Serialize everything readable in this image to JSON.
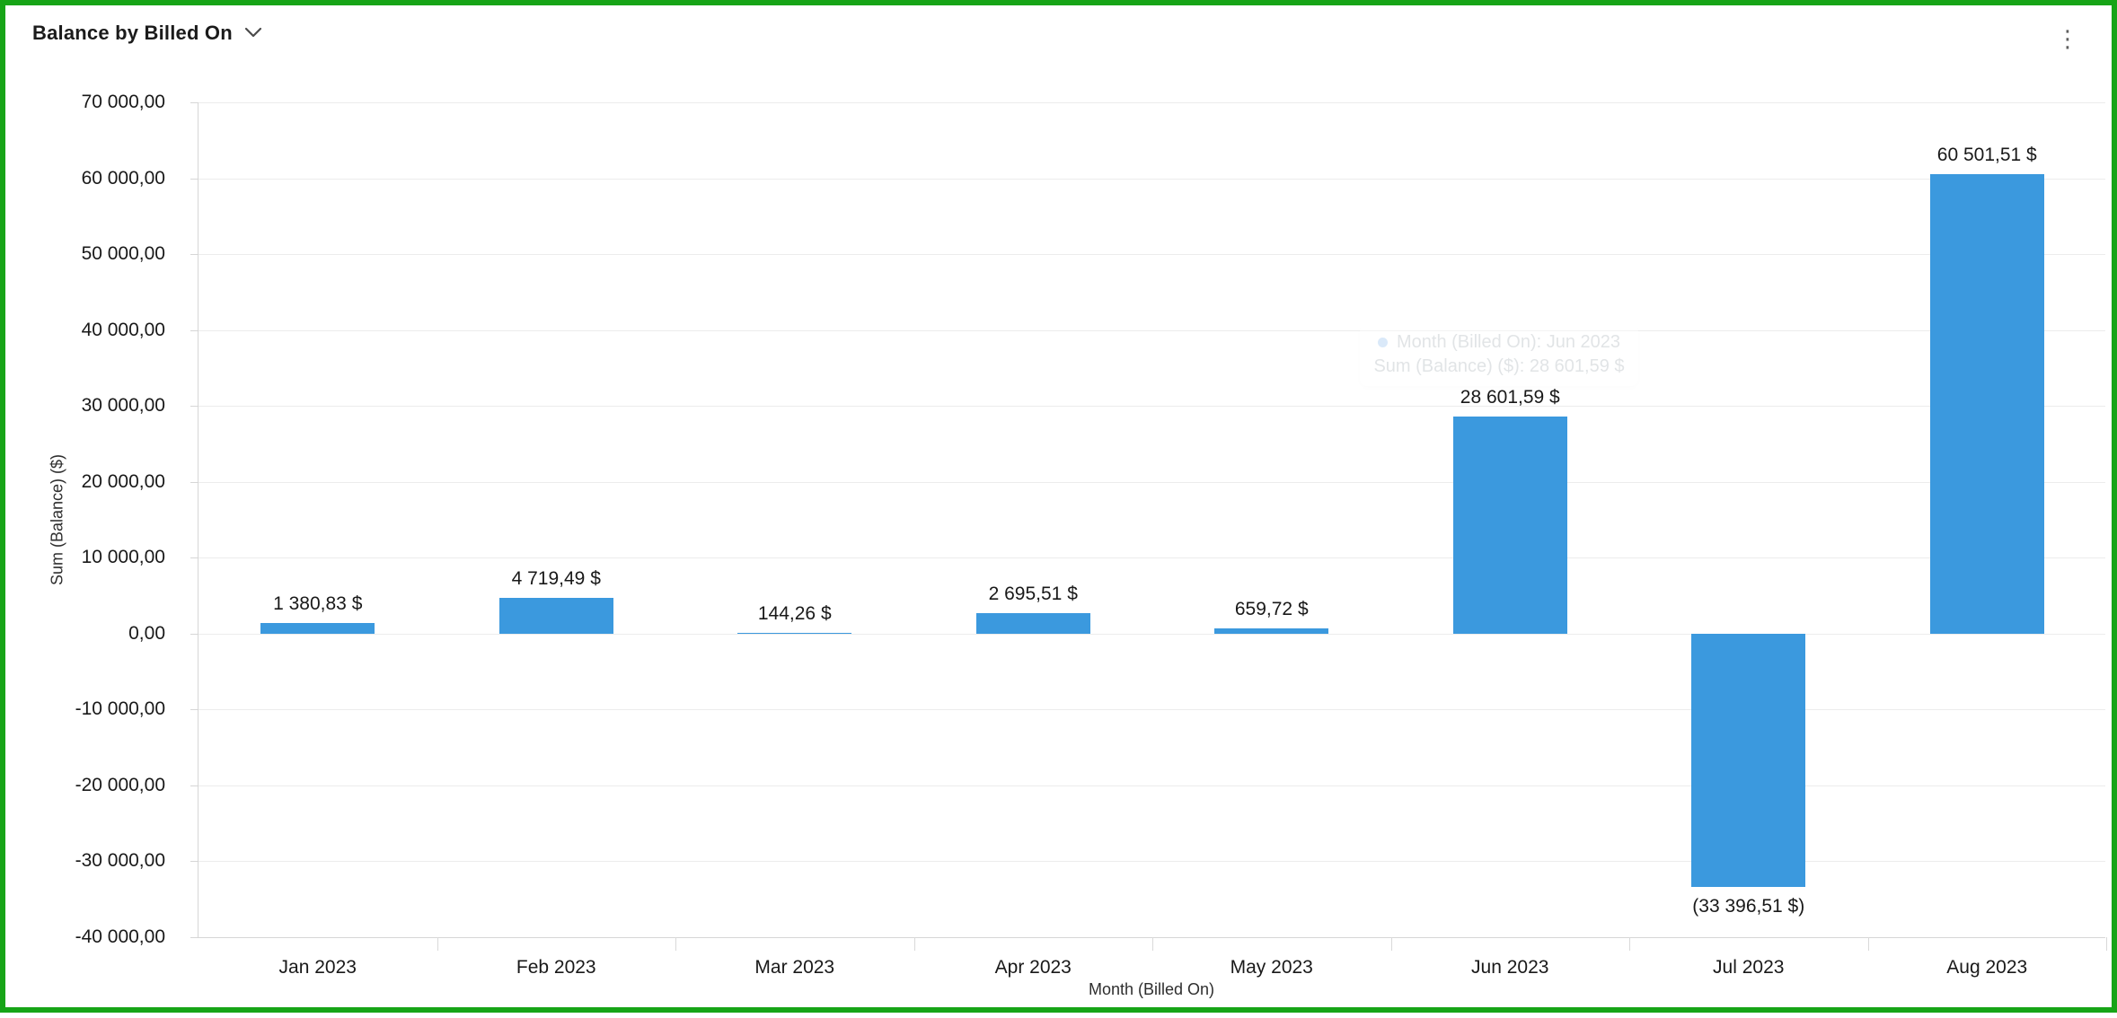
{
  "header": {
    "title": "Balance by Billed On",
    "menu_icon": "⋮"
  },
  "chart_data": {
    "type": "bar",
    "title": "Balance by Billed On",
    "xlabel": "Month (Billed On)",
    "ylabel": "Sum (Balance) ($)",
    "categories": [
      "Jan 2023",
      "Feb 2023",
      "Mar 2023",
      "Apr 2023",
      "May 2023",
      "Jun 2023",
      "Jul 2023",
      "Aug 2023"
    ],
    "values": [
      1380.83,
      4719.49,
      144.26,
      2695.51,
      659.72,
      28601.59,
      -33396.51,
      60501.51
    ],
    "value_labels": [
      "1 380,83 $",
      "4 719,49 $",
      "144,26 $",
      "2 695,51 $",
      "659,72 $",
      "28 601,59 $",
      "(33 396,51 $)",
      "60 501,51 $"
    ],
    "ylim": [
      -40000,
      70000
    ],
    "ytick_step": 10000,
    "ytick_labels": [
      "70 000,00",
      "60 000,00",
      "50 000,00",
      "40 000,00",
      "30 000,00",
      "20 000,00",
      "10 000,00",
      "0,00",
      "-10 000,00",
      "-20 000,00",
      "-30 000,00",
      "-40 000,00"
    ],
    "bar_color": "#3b99de",
    "grid": true,
    "legend": false
  },
  "tooltip": {
    "line1": "Month (Billed On): Jun 2023",
    "line2": "Sum (Balance) ($): 28 601,59 $",
    "bullet_color": "#a8cdf2"
  },
  "colors": {
    "border_green": "#17a417",
    "gridline": "#ececec",
    "axis_line": "#d6d6d6",
    "bar_blue": "#3b99de",
    "text_dark": "#191919"
  }
}
